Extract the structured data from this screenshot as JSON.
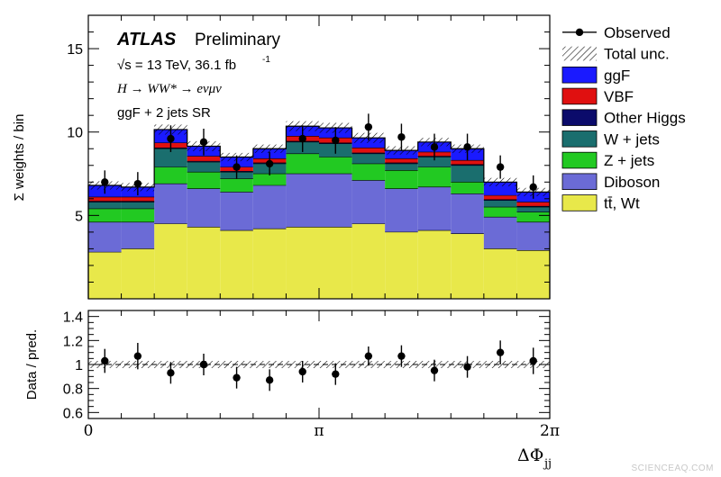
{
  "chart_data": [
    {
      "type": "bar",
      "stacked": true,
      "panel": "main",
      "title_bold": "ATLAS",
      "title_rest": "Preliminary",
      "energy_text": "√s = 13 TeV, 36.1 fb",
      "energy_sup": "-1",
      "process_text": "H → WW* → eνμν",
      "region_text": "ggF + 2 jets SR",
      "ylabel": "Σ weights / bin",
      "ylim": [
        0,
        17
      ],
      "yticks": [
        5,
        10,
        15
      ],
      "bin_edges": [
        "0",
        "π/7",
        "2π/7",
        "3π/7",
        "4π/7",
        "5π/7",
        "6π/7",
        "π",
        "8π/7",
        "9π/7",
        "10π/7",
        "11π/7",
        "12π/7",
        "13π/7",
        "2π"
      ],
      "series": [
        {
          "name": "tt̄, Wt",
          "color": "#e8e84a",
          "values": [
            2.8,
            3.0,
            4.5,
            4.3,
            4.1,
            4.2,
            4.3,
            4.3,
            4.5,
            4.0,
            4.1,
            3.9,
            3.0,
            2.9
          ]
        },
        {
          "name": "Diboson",
          "color": "#6b6bd6",
          "values": [
            1.8,
            1.6,
            2.4,
            2.3,
            2.3,
            2.6,
            3.2,
            3.2,
            2.6,
            2.6,
            2.6,
            2.4,
            1.9,
            1.7
          ]
        },
        {
          "name": "Z + jets",
          "color": "#22c922",
          "values": [
            0.8,
            0.8,
            1.0,
            1.0,
            0.8,
            0.7,
            1.2,
            1.0,
            1.0,
            1.1,
            1.2,
            0.7,
            0.6,
            0.6
          ]
        },
        {
          "name": "W + jets",
          "color": "#1a6e6e",
          "values": [
            0.4,
            0.4,
            1.1,
            0.6,
            0.4,
            0.6,
            0.7,
            0.8,
            0.6,
            0.4,
            0.6,
            1.0,
            0.4,
            0.3
          ]
        },
        {
          "name": "Other Higgs",
          "color": "#0b0b6b",
          "values": [
            0.05,
            0.05,
            0.05,
            0.05,
            0.05,
            0.05,
            0.05,
            0.05,
            0.05,
            0.05,
            0.05,
            0.05,
            0.05,
            0.05
          ]
        },
        {
          "name": "VBF",
          "color": "#e01010",
          "values": [
            0.25,
            0.25,
            0.3,
            0.3,
            0.25,
            0.25,
            0.3,
            0.3,
            0.3,
            0.25,
            0.25,
            0.25,
            0.25,
            0.25
          ]
        },
        {
          "name": "ggF",
          "color": "#1a1aff",
          "values": [
            0.7,
            0.6,
            0.8,
            0.6,
            0.6,
            0.6,
            0.6,
            0.6,
            0.6,
            0.5,
            0.6,
            0.7,
            0.8,
            0.6
          ]
        }
      ],
      "observed": {
        "name": "Observed",
        "values": [
          7.0,
          6.9,
          9.6,
          9.4,
          7.9,
          8.1,
          9.6,
          9.5,
          10.3,
          9.7,
          9.1,
          9.1,
          7.9,
          6.7
        ],
        "errors": [
          0.7,
          0.7,
          0.8,
          0.8,
          0.7,
          0.7,
          0.8,
          0.8,
          0.8,
          0.8,
          0.8,
          0.8,
          0.7,
          0.7
        ]
      },
      "uncertainty": {
        "name": "Total unc.",
        "values": [
          0.25,
          0.25,
          0.3,
          0.3,
          0.25,
          0.25,
          0.3,
          0.3,
          0.3,
          0.25,
          0.25,
          0.25,
          0.25,
          0.25
        ]
      },
      "legend_position": "right"
    },
    {
      "type": "scatter",
      "panel": "ratio",
      "ylabel": "Data / pred.",
      "xlabel": "ΔΦ",
      "xlabel_sub": "jj",
      "ylim": [
        0.55,
        1.45
      ],
      "yticks": [
        "0.6",
        "0.8",
        "1",
        "1.2",
        "1.4"
      ],
      "xtick_labels": [
        "0",
        "π",
        "2π"
      ],
      "values": [
        1.03,
        1.07,
        0.93,
        1.0,
        0.89,
        0.87,
        0.94,
        0.92,
        1.07,
        1.07,
        0.95,
        0.98,
        1.1,
        1.03
      ],
      "errors": [
        0.1,
        0.11,
        0.09,
        0.09,
        0.09,
        0.09,
        0.09,
        0.09,
        0.08,
        0.09,
        0.09,
        0.09,
        0.1,
        0.11
      ],
      "band_halfwidth": 0.03
    }
  ],
  "watermark": "SCIENCEAQ.COM"
}
